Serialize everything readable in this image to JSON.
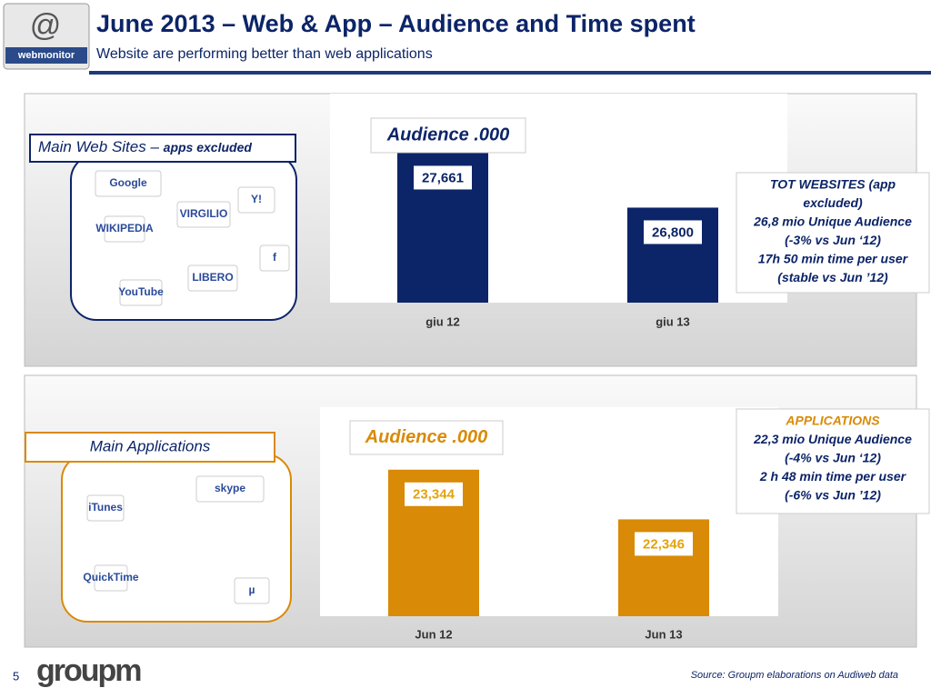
{
  "header": {
    "logo": "webmonitor",
    "title": "June 2013 – Web & App – Audience and Time spent",
    "subtitle": "Website are performing better than web applications"
  },
  "panels": [
    {
      "label": "Main Web Sites –",
      "label_note": "apps excluded",
      "logos": [
        "Google",
        "VIRGILIO",
        "Y!",
        "WIKIPEDIA",
        "LIBERO",
        "f",
        "YouTube"
      ]
    },
    {
      "label": "Main Applications",
      "logos": [
        "iTunes",
        "skype",
        "QuickTime",
        "µ"
      ]
    }
  ],
  "chart_data": [
    {
      "type": "bar",
      "title": "Audience .000",
      "categories": [
        "giu 12",
        "giu 13"
      ],
      "values": [
        27661,
        26800
      ],
      "value_labels": [
        "27,661",
        "26,800"
      ],
      "color": "#0c2468",
      "ylim": [
        25300,
        28600
      ],
      "annotation": [
        "TOT WEBSITES (app",
        "excluded)",
        "26,8 mio Unique Audience",
        "(-3% vs Jun ‘12)",
        "17h 50 min time per user",
        "(stable vs Jun ’12)"
      ]
    },
    {
      "type": "bar",
      "title": "Audience .000",
      "categories": [
        "Jun 12",
        "Jun 13"
      ],
      "values": [
        23344,
        22346
      ],
      "value_labels": [
        "23,344",
        "22,346"
      ],
      "color": "#d98a06",
      "ylim": [
        20400,
        24600
      ],
      "annotation": [
        "APPLICATIONS",
        "22,3 mio Unique Audience",
        "(-4% vs Jun ‘12)",
        "2 h 48 min time per user",
        "(-6% vs Jun ’12)"
      ]
    }
  ],
  "footer": {
    "page": "5",
    "brand": "groupm",
    "source": "Source: Groupm elaborations on Audiweb data"
  }
}
